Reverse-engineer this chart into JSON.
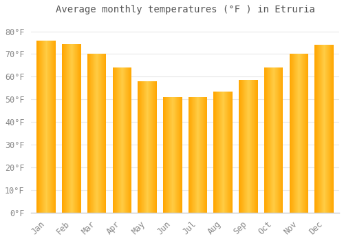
{
  "title": "Average monthly temperatures (°F ) in Etruria",
  "months": [
    "Jan",
    "Feb",
    "Mar",
    "Apr",
    "May",
    "Jun",
    "Jul",
    "Aug",
    "Sep",
    "Oct",
    "Nov",
    "Dec"
  ],
  "values": [
    76,
    74.5,
    70,
    64,
    58,
    51,
    51,
    53.5,
    58.5,
    64,
    70,
    74
  ],
  "bar_color_face": "#FFA500",
  "bar_color_light": "#FFD060",
  "bar_color_edge": "#E08000",
  "background_color": "#FFFFFF",
  "plot_bg_color": "#FFFFFF",
  "grid_color": "#E8E8E8",
  "text_color": "#888888",
  "title_color": "#555555",
  "ylim": [
    0,
    85
  ],
  "yticks": [
    0,
    10,
    20,
    30,
    40,
    50,
    60,
    70,
    80
  ],
  "ytick_labels": [
    "0°F",
    "10°F",
    "20°F",
    "30°F",
    "40°F",
    "50°F",
    "60°F",
    "70°F",
    "80°F"
  ],
  "title_fontsize": 10,
  "tick_fontsize": 8.5
}
